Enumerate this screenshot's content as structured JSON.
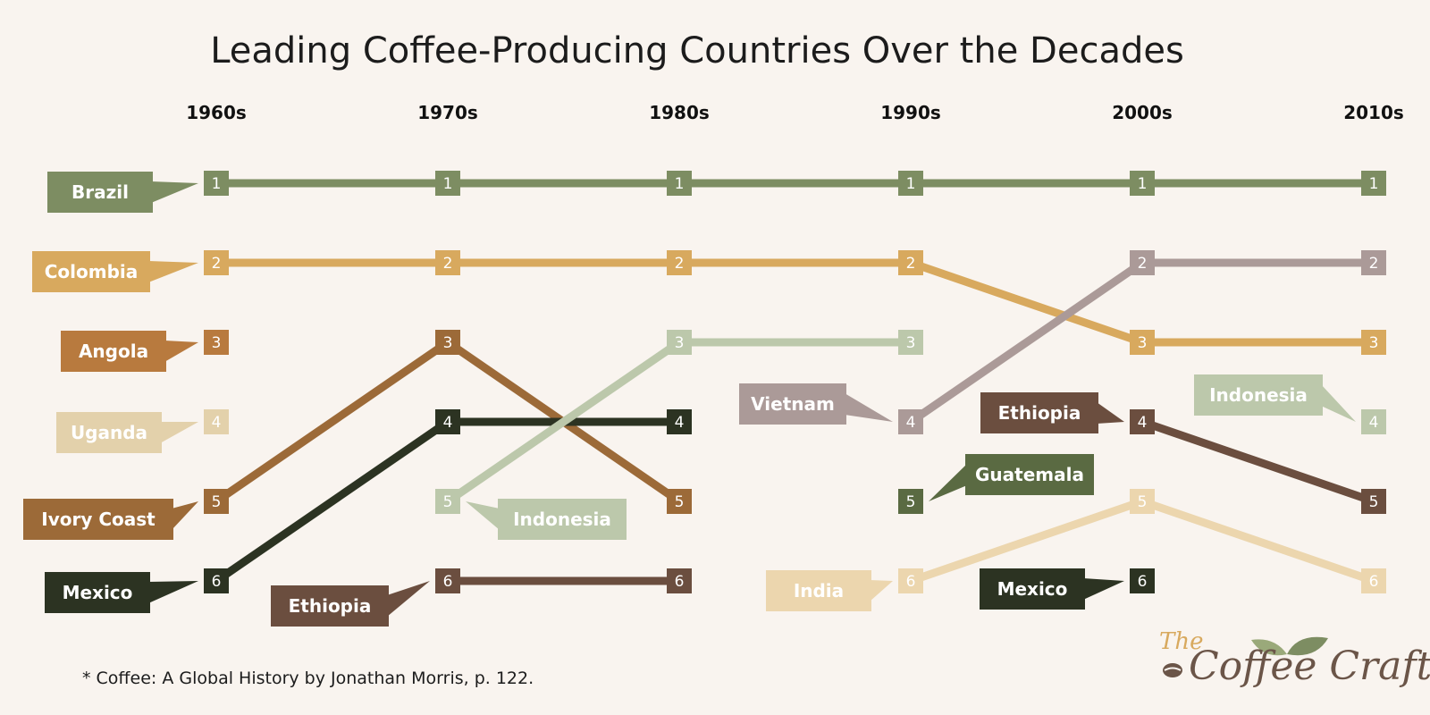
{
  "chart_data": {
    "type": "bump",
    "title": "Leading Coffee-Producing Countries Over the Decades",
    "decades": [
      "1960s",
      "1970s",
      "1980s",
      "1990s",
      "2000s",
      "2010s"
    ],
    "rank_direction": "1 = top",
    "series": [
      {
        "name": "Brazil",
        "color": "#7d8d62",
        "ranks": [
          1,
          1,
          1,
          1,
          1,
          1
        ]
      },
      {
        "name": "Colombia",
        "color": "#d8a95e",
        "ranks": [
          2,
          2,
          2,
          2,
          3,
          3
        ]
      },
      {
        "name": "Angola",
        "color": "#b87a3e",
        "ranks": [
          3,
          null,
          null,
          null,
          null,
          null
        ]
      },
      {
        "name": "Uganda",
        "color": "#e3d1ab",
        "ranks": [
          4,
          null,
          null,
          null,
          null,
          null
        ]
      },
      {
        "name": "Ivory Coast",
        "color": "#9c6a38",
        "ranks": [
          5,
          3,
          5,
          null,
          null,
          null
        ]
      },
      {
        "name": "Mexico",
        "color": "#2c3322",
        "ranks": [
          6,
          4,
          4,
          null,
          6,
          null
        ]
      },
      {
        "name": "Indonesia",
        "color": "#bcc8ab",
        "ranks": [
          null,
          5,
          3,
          3,
          null,
          4
        ]
      },
      {
        "name": "Ethiopia",
        "color": "#6b4e3f",
        "ranks": [
          null,
          6,
          6,
          null,
          4,
          5
        ]
      },
      {
        "name": "Vietnam",
        "color": "#ab9a98",
        "ranks": [
          null,
          null,
          null,
          4,
          2,
          2
        ]
      },
      {
        "name": "Guatemala",
        "color": "#5a6a42",
        "ranks": [
          null,
          null,
          null,
          5,
          null,
          null
        ]
      },
      {
        "name": "India",
        "color": "#ecd6ae",
        "ranks": [
          null,
          null,
          null,
          6,
          5,
          6
        ]
      }
    ],
    "labels": [
      {
        "text": "Brazil",
        "series": "Brazil",
        "decade": "1960s",
        "rank": 1,
        "side": "left"
      },
      {
        "text": "Colombia",
        "series": "Colombia",
        "decade": "1960s",
        "rank": 2,
        "side": "left"
      },
      {
        "text": "Angola",
        "series": "Angola",
        "decade": "1960s",
        "rank": 3,
        "side": "left"
      },
      {
        "text": "Uganda",
        "series": "Uganda",
        "decade": "1960s",
        "rank": 4,
        "side": "left"
      },
      {
        "text": "Ivory Coast",
        "series": "Ivory Coast",
        "decade": "1960s",
        "rank": 5,
        "side": "left"
      },
      {
        "text": "Mexico",
        "series": "Mexico",
        "decade": "1960s",
        "rank": 6,
        "side": "left"
      },
      {
        "text": "Ethiopia",
        "series": "Ethiopia",
        "decade": "1970s",
        "rank": 6,
        "side": "left"
      },
      {
        "text": "Indonesia",
        "series": "Indonesia",
        "decade": "1970s",
        "rank": 5,
        "side": "right"
      },
      {
        "text": "Vietnam",
        "series": "Vietnam",
        "decade": "1990s",
        "rank": 4,
        "side": "left"
      },
      {
        "text": "Guatemala",
        "series": "Guatemala",
        "decade": "1990s",
        "rank": 5,
        "side": "right"
      },
      {
        "text": "India",
        "series": "India",
        "decade": "1990s",
        "rank": 6,
        "side": "left"
      },
      {
        "text": "Ethiopia",
        "series": "Ethiopia",
        "decade": "2000s",
        "rank": 4,
        "side": "left"
      },
      {
        "text": "Mexico",
        "series": "Mexico",
        "decade": "2000s",
        "rank": 6,
        "side": "left"
      },
      {
        "text": "Indonesia",
        "series": "Indonesia",
        "decade": "2010s",
        "rank": 4,
        "side": "left"
      }
    ]
  },
  "footnote": "* Coffee: A Global History by Jonathan Morris, p. 122.",
  "logo": {
    "small": "The",
    "main": "Coffee Craft"
  }
}
